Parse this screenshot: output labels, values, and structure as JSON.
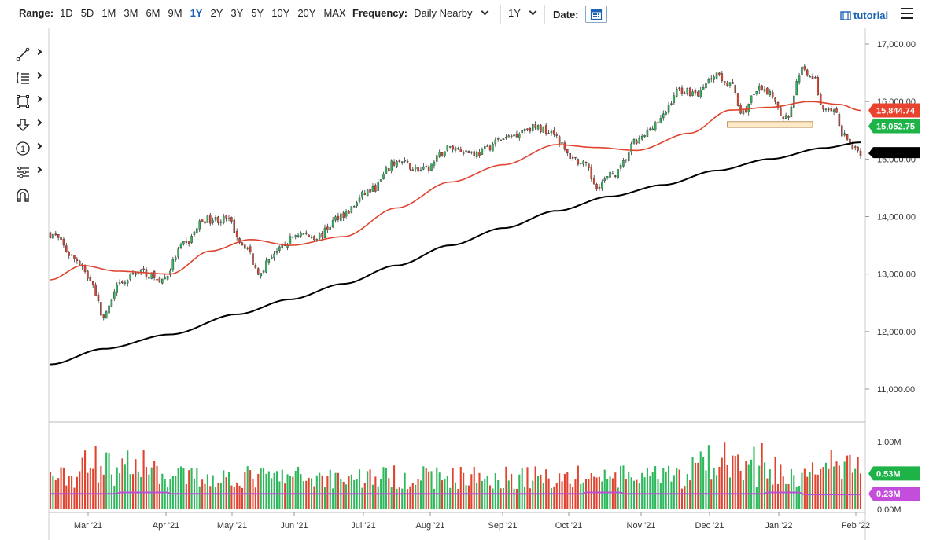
{
  "toolbar": {
    "range_label": "Range:",
    "ranges": [
      "1D",
      "5D",
      "1M",
      "3M",
      "6M",
      "9M",
      "1Y",
      "2Y",
      "3Y",
      "5Y",
      "10Y",
      "20Y",
      "MAX"
    ],
    "active_range": "1Y",
    "frequency_label": "Frequency:",
    "frequency_value": "Daily Nearby",
    "period_value": "1Y",
    "date_label": "Date:",
    "tutorial_label": "tutorial"
  },
  "tools": [
    {
      "name": "line-tool",
      "icon": "trend-line-icon"
    },
    {
      "name": "fib-tool",
      "icon": "fibonacci-icon"
    },
    {
      "name": "shape-tool",
      "icon": "rectangle-icon"
    },
    {
      "name": "arrow-tool",
      "icon": "arrow-down-icon"
    },
    {
      "name": "annotation-tool",
      "icon": "numbered-marker-icon",
      "text": "1"
    },
    {
      "name": "measure-tool",
      "icon": "measure-icon"
    },
    {
      "name": "magnet-tool",
      "icon": "magnet-icon"
    }
  ],
  "colors": {
    "up": "#2eb85c",
    "down": "#e0442f",
    "ma_fast": "#e0442f",
    "ma_slow": "#000000",
    "volume_avg": "#b84fd6",
    "volume_badge": "#1db347",
    "volume_avg_badge": "#c44ddb",
    "last_price_badge": "#1db347",
    "ma_fast_badge": "#e8432f"
  },
  "chart_data": {
    "type": "candlestick",
    "price_axis": {
      "ticks": [
        "17,000.00",
        "16,000.00",
        "15,000.00",
        "14,000.00",
        "13,000.00",
        "12,000.00",
        "11,000.00"
      ],
      "range": [
        11000,
        17500
      ]
    },
    "volume_axis": {
      "ticks": [
        "1.00M",
        "0.50M",
        "0.00M"
      ],
      "range": [
        0,
        1000000
      ]
    },
    "x_ticks": [
      "Mar '21",
      "Apr '21",
      "May '21",
      "Jun '21",
      "Jul '21",
      "Aug '21",
      "Sep '21",
      "Oct '21",
      "Nov '21",
      "Dec '21",
      "Jan '22",
      "Feb '22"
    ],
    "last_price": "15,052.75",
    "ma_fast_value": "15,844.74",
    "ma_slow_value": "",
    "last_volume": "0.53M",
    "avg_volume": "0.23M",
    "close_anchors": [
      {
        "i": 0,
        "v": 13700
      },
      {
        "i": 10,
        "v": 13250
      },
      {
        "i": 15,
        "v": 12900
      },
      {
        "i": 20,
        "v": 12250
      },
      {
        "i": 26,
        "v": 12800
      },
      {
        "i": 33,
        "v": 13050
      },
      {
        "i": 42,
        "v": 12900
      },
      {
        "i": 50,
        "v": 13500
      },
      {
        "i": 58,
        "v": 13950
      },
      {
        "i": 66,
        "v": 13950
      },
      {
        "i": 73,
        "v": 13500
      },
      {
        "i": 78,
        "v": 13050
      },
      {
        "i": 85,
        "v": 13400
      },
      {
        "i": 93,
        "v": 13700
      },
      {
        "i": 100,
        "v": 13650
      },
      {
        "i": 110,
        "v": 14050
      },
      {
        "i": 120,
        "v": 14450
      },
      {
        "i": 130,
        "v": 14950
      },
      {
        "i": 140,
        "v": 14800
      },
      {
        "i": 150,
        "v": 15200
      },
      {
        "i": 160,
        "v": 15100
      },
      {
        "i": 170,
        "v": 15350
      },
      {
        "i": 180,
        "v": 15550
      },
      {
        "i": 188,
        "v": 15500
      },
      {
        "i": 195,
        "v": 15050
      },
      {
        "i": 200,
        "v": 14900
      },
      {
        "i": 205,
        "v": 14550
      },
      {
        "i": 212,
        "v": 14750
      },
      {
        "i": 220,
        "v": 15300
      },
      {
        "i": 228,
        "v": 15650
      },
      {
        "i": 236,
        "v": 16200
      },
      {
        "i": 243,
        "v": 16150
      },
      {
        "i": 250,
        "v": 16500
      },
      {
        "i": 255,
        "v": 16300
      },
      {
        "i": 260,
        "v": 15800
      },
      {
        "i": 265,
        "v": 16200
      },
      {
        "i": 270,
        "v": 16150
      },
      {
        "i": 276,
        "v": 15700
      },
      {
        "i": 282,
        "v": 16550
      },
      {
        "i": 286,
        "v": 16450
      },
      {
        "i": 290,
        "v": 15850
      },
      {
        "i": 294,
        "v": 15800
      },
      {
        "i": 298,
        "v": 15400
      },
      {
        "i": 302,
        "v": 15150
      },
      {
        "i": 304,
        "v": 15052.75
      }
    ],
    "ma_fast_anchors": [
      {
        "i": 0,
        "v": 12900
      },
      {
        "i": 12,
        "v": 13150
      },
      {
        "i": 25,
        "v": 13050
      },
      {
        "i": 45,
        "v": 13000
      },
      {
        "i": 60,
        "v": 13400
      },
      {
        "i": 75,
        "v": 13600
      },
      {
        "i": 90,
        "v": 13500
      },
      {
        "i": 110,
        "v": 13650
      },
      {
        "i": 130,
        "v": 14150
      },
      {
        "i": 150,
        "v": 14600
      },
      {
        "i": 170,
        "v": 14900
      },
      {
        "i": 190,
        "v": 15250
      },
      {
        "i": 205,
        "v": 15200
      },
      {
        "i": 220,
        "v": 15150
      },
      {
        "i": 240,
        "v": 15450
      },
      {
        "i": 255,
        "v": 15850
      },
      {
        "i": 270,
        "v": 15900
      },
      {
        "i": 285,
        "v": 16000
      },
      {
        "i": 296,
        "v": 15950
      },
      {
        "i": 304,
        "v": 15844.74
      }
    ],
    "ma_slow_anchors": [
      {
        "i": 0,
        "v": 11430
      },
      {
        "i": 20,
        "v": 11700
      },
      {
        "i": 45,
        "v": 11950
      },
      {
        "i": 70,
        "v": 12300
      },
      {
        "i": 90,
        "v": 12560
      },
      {
        "i": 110,
        "v": 12830
      },
      {
        "i": 130,
        "v": 13150
      },
      {
        "i": 150,
        "v": 13500
      },
      {
        "i": 170,
        "v": 13800
      },
      {
        "i": 190,
        "v": 14100
      },
      {
        "i": 210,
        "v": 14350
      },
      {
        "i": 230,
        "v": 14550
      },
      {
        "i": 250,
        "v": 14800
      },
      {
        "i": 270,
        "v": 15000
      },
      {
        "i": 290,
        "v": 15190
      },
      {
        "i": 304,
        "v": 15290
      }
    ],
    "support_zone": {
      "i_start": 254,
      "i_end": 286,
      "low": 15550,
      "high": 15650
    }
  }
}
